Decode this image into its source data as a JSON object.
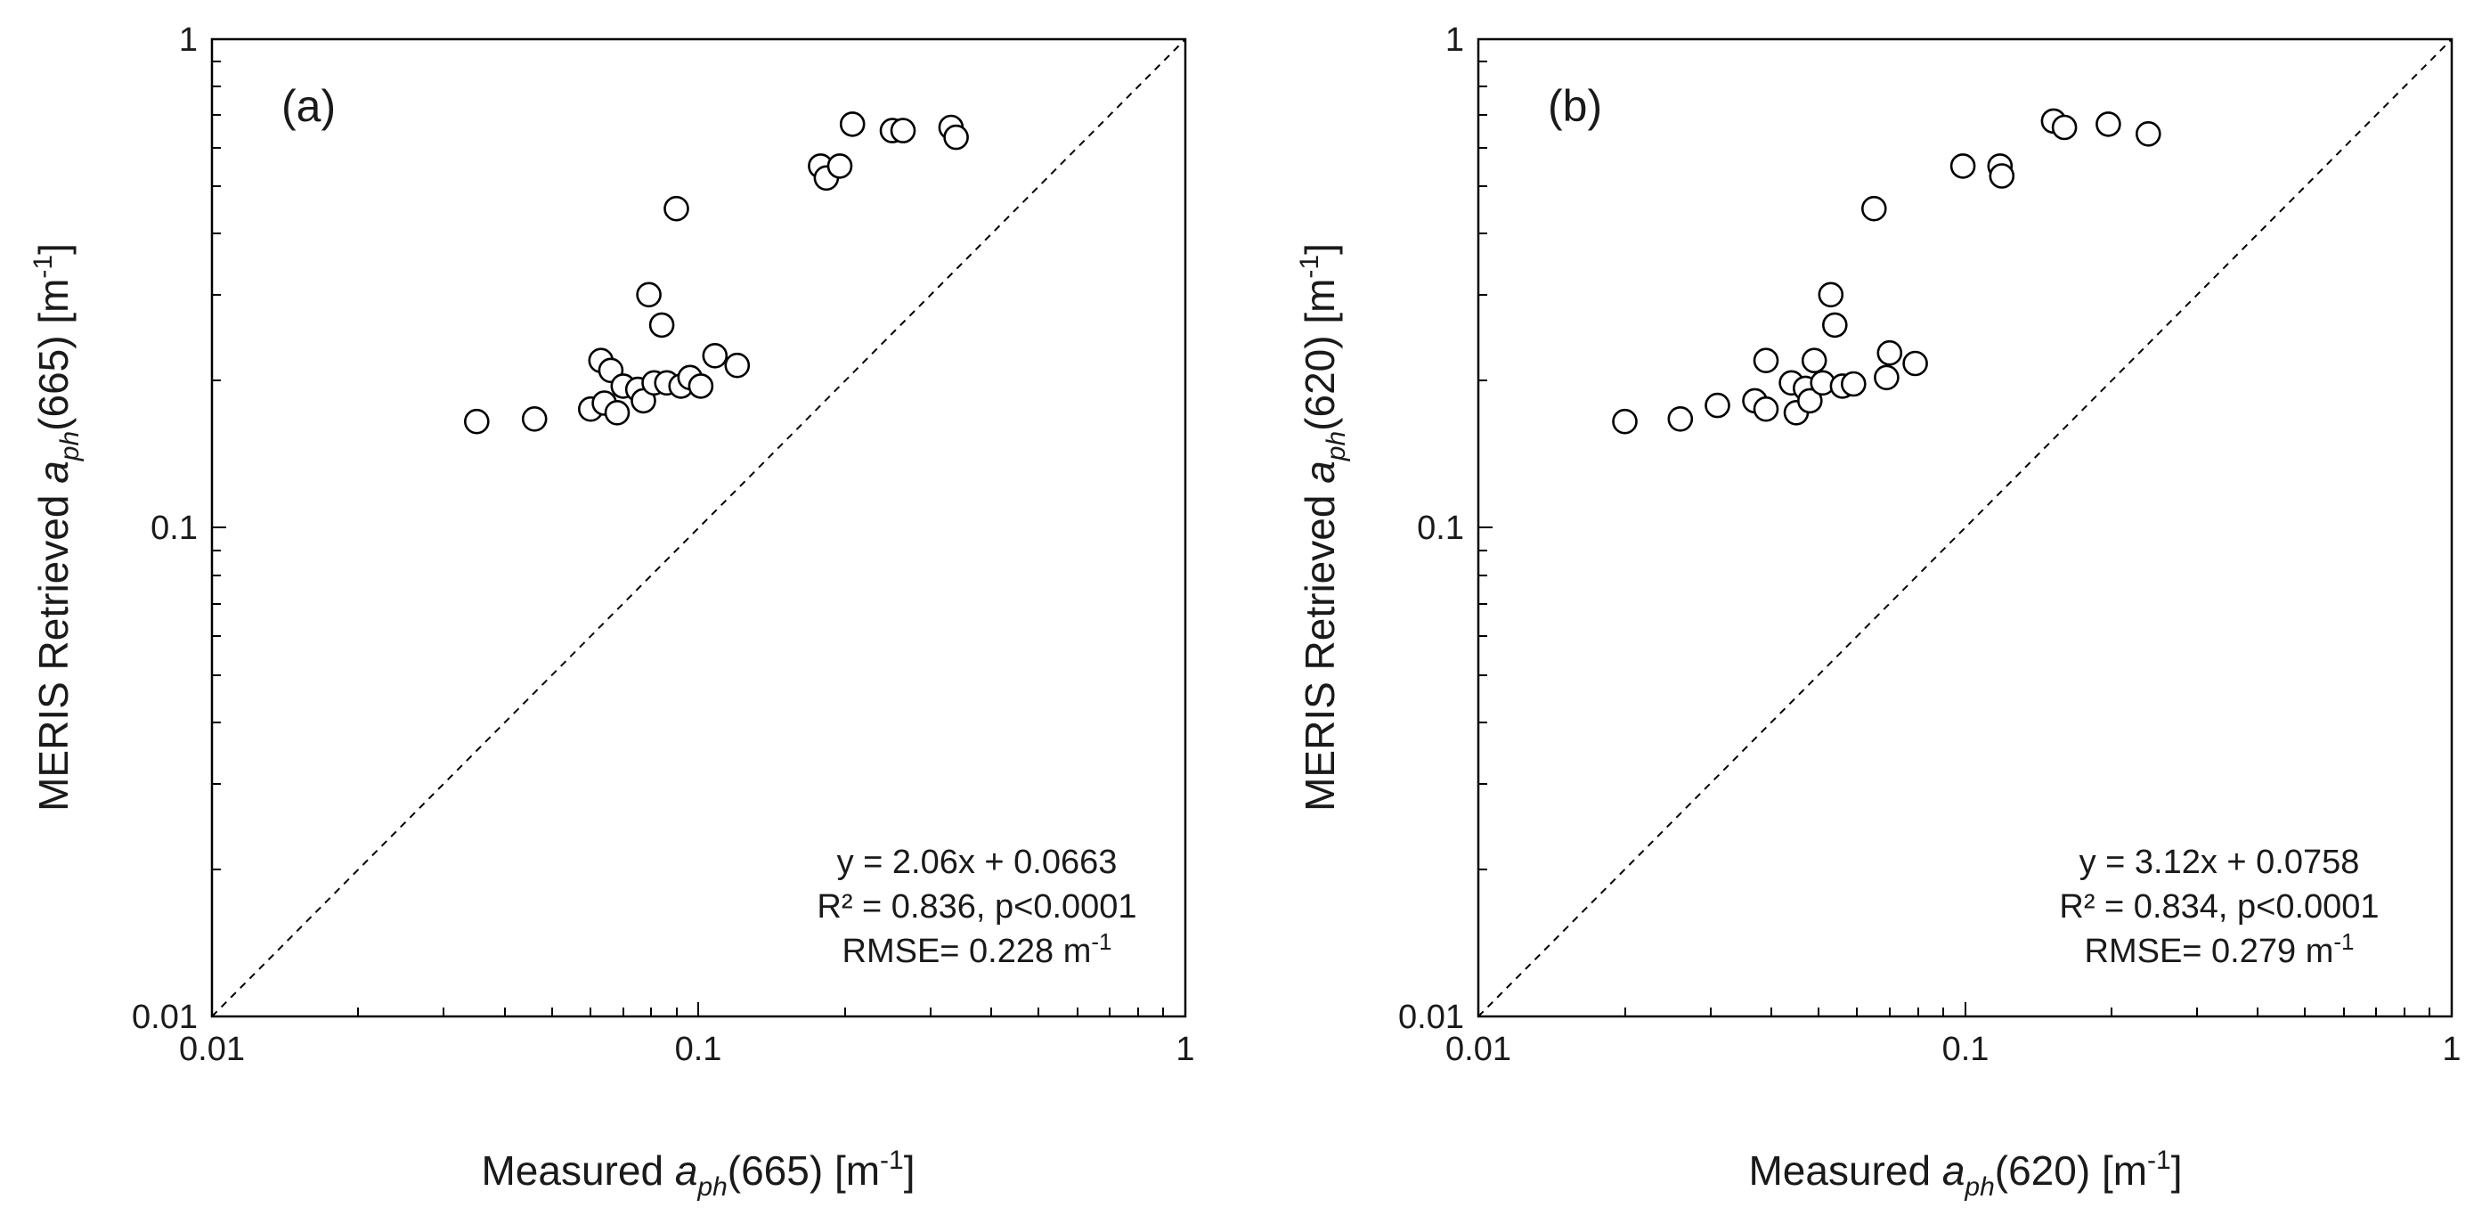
{
  "chart_data": [
    {
      "type": "scatter",
      "panel_label": "(a)",
      "x_scale": "log",
      "y_scale": "log",
      "xlim": [
        0.01,
        1
      ],
      "ylim": [
        0.01,
        1
      ],
      "x_tick_labels": [
        "0.01",
        "0.1",
        "1"
      ],
      "y_tick_labels": [
        "0.01",
        "0.1",
        "1"
      ],
      "xlabel": {
        "pre": "Measured ",
        "var": "a",
        "sub": "ph",
        "post": "(665) [m",
        "sup": "-1",
        "end": "]"
      },
      "ylabel": {
        "pre": "MERIS Retrieved ",
        "var": "a",
        "sub": "ph",
        "post": "(665) [m",
        "sup": "-1",
        "end": "]"
      },
      "reference_line": "1:1",
      "annotation": {
        "equation": "y = 2.06x + 0.0663",
        "r2": "R² = 0.836, p<0.0001",
        "rmse": "RMSE= 0.228 m",
        "rmse_sup": "-1"
      },
      "points": [
        {
          "x": 0.035,
          "y": 0.165
        },
        {
          "x": 0.046,
          "y": 0.167
        },
        {
          "x": 0.06,
          "y": 0.175
        },
        {
          "x": 0.063,
          "y": 0.22
        },
        {
          "x": 0.064,
          "y": 0.18
        },
        {
          "x": 0.066,
          "y": 0.21
        },
        {
          "x": 0.068,
          "y": 0.172
        },
        {
          "x": 0.07,
          "y": 0.195
        },
        {
          "x": 0.075,
          "y": 0.192
        },
        {
          "x": 0.077,
          "y": 0.182
        },
        {
          "x": 0.079,
          "y": 0.3
        },
        {
          "x": 0.081,
          "y": 0.198
        },
        {
          "x": 0.084,
          "y": 0.26
        },
        {
          "x": 0.086,
          "y": 0.198
        },
        {
          "x": 0.09,
          "y": 0.45
        },
        {
          "x": 0.092,
          "y": 0.195
        },
        {
          "x": 0.096,
          "y": 0.203
        },
        {
          "x": 0.101,
          "y": 0.195
        },
        {
          "x": 0.108,
          "y": 0.225
        },
        {
          "x": 0.12,
          "y": 0.215
        },
        {
          "x": 0.178,
          "y": 0.55
        },
        {
          "x": 0.183,
          "y": 0.52
        },
        {
          "x": 0.195,
          "y": 0.55
        },
        {
          "x": 0.207,
          "y": 0.67
        },
        {
          "x": 0.25,
          "y": 0.65
        },
        {
          "x": 0.263,
          "y": 0.65
        },
        {
          "x": 0.33,
          "y": 0.66
        },
        {
          "x": 0.338,
          "y": 0.63
        }
      ]
    },
    {
      "type": "scatter",
      "panel_label": "(b)",
      "x_scale": "log",
      "y_scale": "log",
      "xlim": [
        0.01,
        1
      ],
      "ylim": [
        0.01,
        1
      ],
      "x_tick_labels": [
        "0.01",
        "0.1",
        "1"
      ],
      "y_tick_labels": [
        "0.01",
        "0.1",
        "1"
      ],
      "xlabel": {
        "pre": "Measured ",
        "var": "a",
        "sub": "ph",
        "post": "(620) [m",
        "sup": "-1",
        "end": "]"
      },
      "ylabel": {
        "pre": "MERIS Retrieved ",
        "var": "a",
        "sub": "ph",
        "post": "(620) [m",
        "sup": "-1",
        "end": "]"
      },
      "reference_line": "1:1",
      "annotation": {
        "equation": "y = 3.12x + 0.0758",
        "r2": "R² = 0.834, p<0.0001",
        "rmse": "RMSE= 0.279 m",
        "rmse_sup": "-1"
      },
      "points": [
        {
          "x": 0.02,
          "y": 0.165
        },
        {
          "x": 0.026,
          "y": 0.167
        },
        {
          "x": 0.031,
          "y": 0.178
        },
        {
          "x": 0.037,
          "y": 0.182
        },
        {
          "x": 0.039,
          "y": 0.175
        },
        {
          "x": 0.039,
          "y": 0.22
        },
        {
          "x": 0.044,
          "y": 0.198
        },
        {
          "x": 0.045,
          "y": 0.172
        },
        {
          "x": 0.047,
          "y": 0.193
        },
        {
          "x": 0.048,
          "y": 0.182
        },
        {
          "x": 0.049,
          "y": 0.22
        },
        {
          "x": 0.051,
          "y": 0.198
        },
        {
          "x": 0.053,
          "y": 0.3
        },
        {
          "x": 0.054,
          "y": 0.26
        },
        {
          "x": 0.056,
          "y": 0.195
        },
        {
          "x": 0.059,
          "y": 0.197
        },
        {
          "x": 0.065,
          "y": 0.45
        },
        {
          "x": 0.069,
          "y": 0.203
        },
        {
          "x": 0.07,
          "y": 0.228
        },
        {
          "x": 0.079,
          "y": 0.217
        },
        {
          "x": 0.099,
          "y": 0.55
        },
        {
          "x": 0.118,
          "y": 0.55
        },
        {
          "x": 0.119,
          "y": 0.525
        },
        {
          "x": 0.152,
          "y": 0.68
        },
        {
          "x": 0.16,
          "y": 0.66
        },
        {
          "x": 0.197,
          "y": 0.67
        },
        {
          "x": 0.238,
          "y": 0.64
        }
      ]
    }
  ]
}
